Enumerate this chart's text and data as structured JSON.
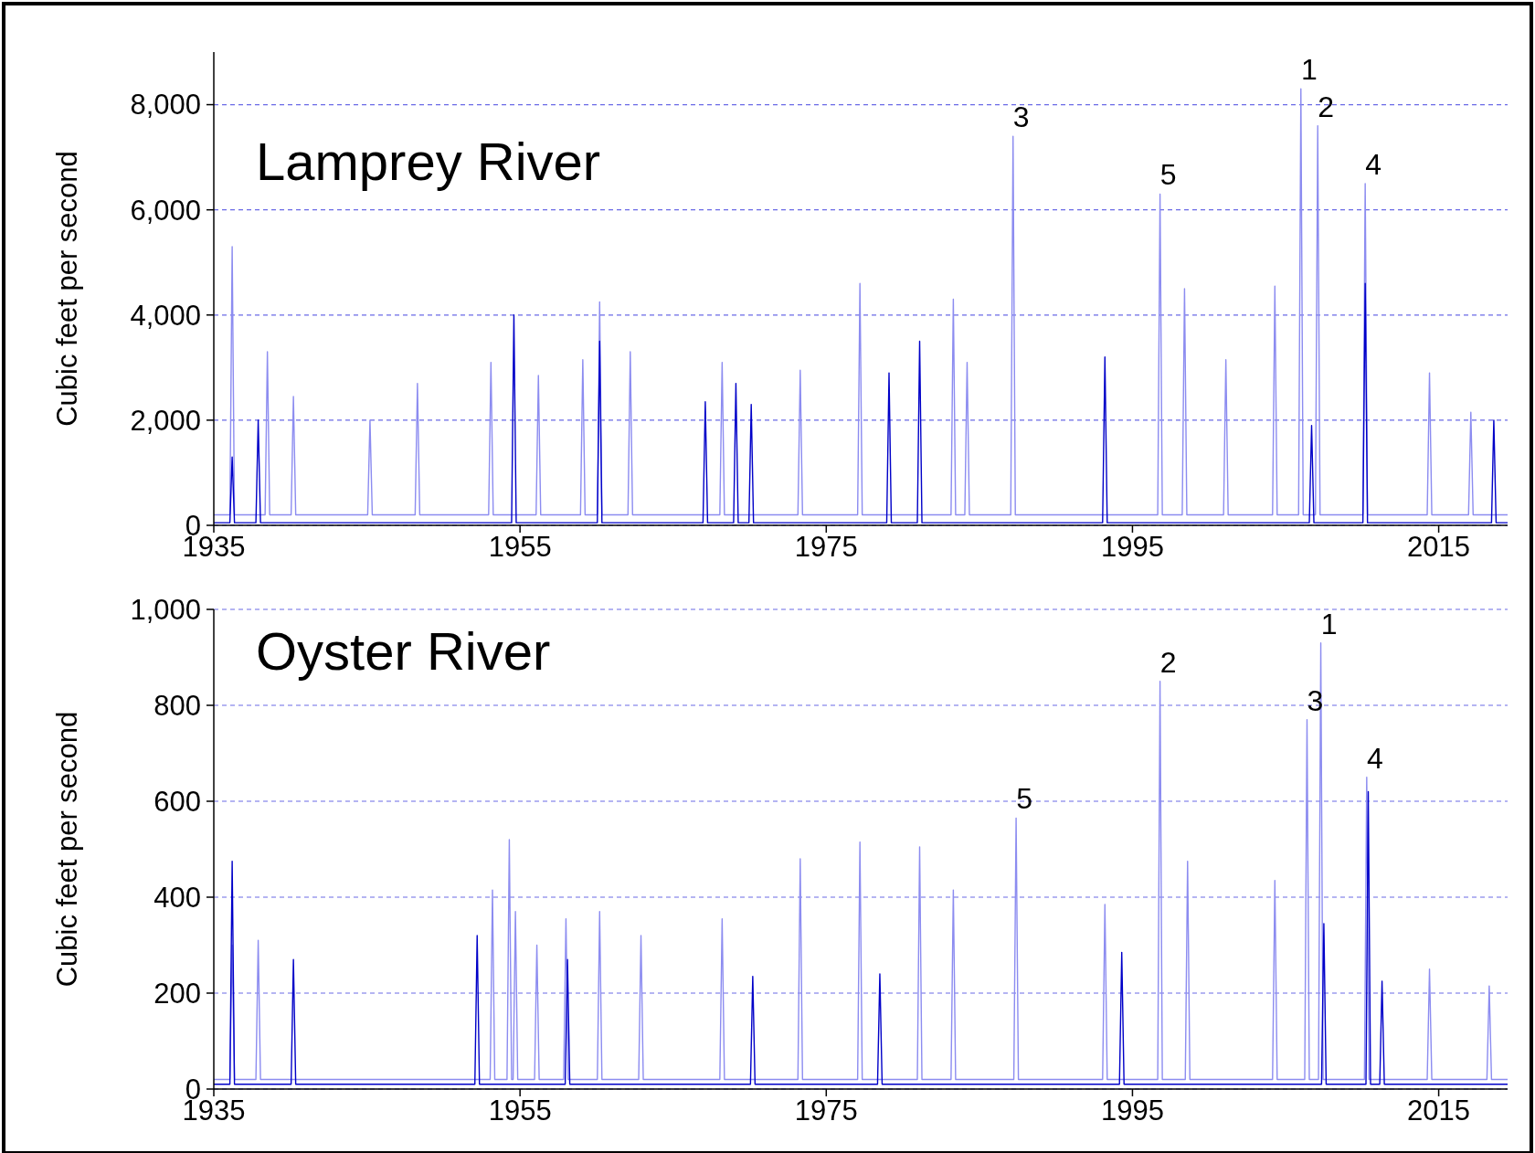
{
  "chart_data": [
    {
      "type": "line",
      "title": "Lamprey River",
      "ylabel": "Cubic feet per second",
      "xlim": [
        1935,
        2019.5
      ],
      "xticks": [
        1935,
        1955,
        1975,
        1995,
        2015
      ],
      "ylim": [
        0,
        9000
      ],
      "yticks": [
        0,
        {
          "value": 2000,
          "label": "2,000"
        },
        {
          "value": 4000,
          "label": "4,000"
        },
        {
          "value": 6000,
          "label": "6,000"
        },
        {
          "value": 8000,
          "label": "8,000"
        }
      ],
      "grid": "y",
      "line_style": "solid",
      "series": [
        {
          "color": "#8c8cf0",
          "x": [
            1935,
            1936.05,
            1936.2,
            1936.35,
            1938.35,
            1938.5,
            1938.65,
            1940.05,
            1940.2,
            1940.35,
            1945.05,
            1945.2,
            1945.35,
            1948.15,
            1948.3,
            1948.45,
            1952.95,
            1953.1,
            1953.25,
            1956.05,
            1956.2,
            1956.35,
            1958.95,
            1959.1,
            1959.25,
            1960.05,
            1960.2,
            1960.35,
            1962.05,
            1962.2,
            1962.35,
            1968.05,
            1968.2,
            1968.35,
            1973.15,
            1973.3,
            1973.45,
            1977.05,
            1977.2,
            1977.35,
            1983.15,
            1983.3,
            1983.45,
            1984.05,
            1984.2,
            1984.35,
            1987.05,
            1987.2,
            1987.35,
            1996.65,
            1996.8,
            1996.95,
            1998.25,
            1998.4,
            1998.55,
            2000.95,
            2001.1,
            2001.25,
            2004.15,
            2004.3,
            2004.45,
            2005.85,
            2006,
            2006.15,
            2006.95,
            2007.1,
            2007.25,
            2010.05,
            2010.2,
            2010.35,
            2014.25,
            2014.4,
            2014.55,
            2016.95,
            2017.1,
            2017.25,
            2019.5
          ],
          "values": [
            200,
            200,
            5300,
            200,
            200,
            3300,
            200,
            200,
            2450,
            200,
            200,
            2000,
            200,
            200,
            2700,
            200,
            200,
            3100,
            200,
            200,
            2850,
            200,
            200,
            3150,
            200,
            200,
            4250,
            200,
            200,
            3300,
            200,
            200,
            3100,
            200,
            200,
            2950,
            200,
            200,
            4600,
            200,
            200,
            4300,
            200,
            200,
            3100,
            200,
            200,
            7400,
            200,
            200,
            6300,
            200,
            200,
            4500,
            200,
            200,
            3150,
            200,
            200,
            4550,
            200,
            200,
            8300,
            200,
            200,
            7600,
            200,
            200,
            6500,
            200,
            200,
            2900,
            200,
            200,
            2150,
            200,
            200
          ]
        },
        {
          "color": "#0000c8",
          "x": [
            1935,
            1936.05,
            1936.2,
            1936.35,
            1937.75,
            1937.9,
            1938.05,
            1954.45,
            1954.6,
            1954.75,
            1960.05,
            1960.2,
            1960.35,
            1966.95,
            1967.1,
            1967.25,
            1968.95,
            1969.1,
            1969.25,
            1969.95,
            1970.1,
            1970.25,
            1978.95,
            1979.1,
            1979.25,
            1980.95,
            1981.1,
            1981.25,
            1993.05,
            1993.2,
            1993.35,
            2006.55,
            2006.7,
            2006.85,
            2010.05,
            2010.2,
            2010.35,
            2018.45,
            2018.6,
            2018.75,
            2019.5
          ],
          "values": [
            50,
            50,
            1300,
            50,
            50,
            2000,
            50,
            50,
            4000,
            50,
            50,
            3500,
            50,
            50,
            2350,
            50,
            50,
            2700,
            50,
            50,
            2300,
            50,
            50,
            2900,
            50,
            50,
            3500,
            50,
            50,
            3200,
            50,
            50,
            1900,
            50,
            50,
            4600,
            50,
            50,
            2000,
            50,
            50
          ]
        }
      ],
      "annotations": [
        {
          "text": "1",
          "x": 2006,
          "y": 8300
        },
        {
          "text": "2",
          "x": 2007.1,
          "y": 7600
        },
        {
          "text": "3",
          "x": 1987.2,
          "y": 7400
        },
        {
          "text": "4",
          "x": 2010.2,
          "y": 6500
        },
        {
          "text": "5",
          "x": 1996.8,
          "y": 6300
        }
      ]
    },
    {
      "type": "line",
      "title": "Oyster River",
      "ylabel": "Cubic feet per second",
      "xlim": [
        1935,
        2019.5
      ],
      "xticks": [
        1935,
        1955,
        1975,
        1995,
        2015
      ],
      "ylim": [
        0,
        1000
      ],
      "yticks": [
        0,
        200,
        400,
        600,
        800,
        {
          "value": 1000,
          "label": "1,000"
        }
      ],
      "grid": "y",
      "line_style": "solid",
      "series": [
        {
          "color": "#8c8cf0",
          "x": [
            1935,
            1936.05,
            1936.2,
            1936.35,
            1937.75,
            1937.9,
            1938.05,
            1953.05,
            1953.2,
            1953.35,
            1954.15,
            1954.3,
            1954.45,
            1954.55,
            1954.7,
            1954.85,
            1955.95,
            1956.1,
            1956.25,
            1957.85,
            1958,
            1958.15,
            1960.05,
            1960.2,
            1960.35,
            1962.75,
            1962.9,
            1963.05,
            1968.05,
            1968.2,
            1968.35,
            1973.15,
            1973.3,
            1973.45,
            1977.05,
            1977.2,
            1977.35,
            1980.95,
            1981.1,
            1981.25,
            1983.15,
            1983.3,
            1983.45,
            1987.25,
            1987.4,
            1987.55,
            1993.05,
            1993.2,
            1993.35,
            1996.65,
            1996.8,
            1996.95,
            1998.45,
            1998.6,
            1998.75,
            2004.15,
            2004.3,
            2004.45,
            2006.25,
            2006.4,
            2006.55,
            2007.15,
            2007.3,
            2007.45,
            2010.15,
            2010.3,
            2010.45,
            2014.25,
            2014.4,
            2014.55,
            2018.15,
            2018.3,
            2018.45,
            2019.5
          ],
          "values": [
            20,
            20,
            300,
            20,
            20,
            310,
            20,
            20,
            415,
            20,
            20,
            520,
            20,
            20,
            370,
            20,
            20,
            300,
            20,
            20,
            355,
            20,
            20,
            370,
            20,
            20,
            320,
            20,
            20,
            355,
            20,
            20,
            480,
            20,
            20,
            515,
            20,
            20,
            505,
            20,
            20,
            415,
            20,
            20,
            565,
            20,
            20,
            385,
            20,
            20,
            850,
            20,
            20,
            475,
            20,
            20,
            435,
            20,
            20,
            770,
            20,
            20,
            930,
            20,
            20,
            650,
            20,
            20,
            250,
            20,
            20,
            215,
            20,
            20
          ]
        },
        {
          "color": "#0000c8",
          "x": [
            1935,
            1936.05,
            1936.2,
            1936.35,
            1940.05,
            1940.2,
            1940.35,
            1952.05,
            1952.2,
            1952.35,
            1957.95,
            1958.1,
            1958.25,
            1970.05,
            1970.2,
            1970.35,
            1978.35,
            1978.5,
            1978.65,
            1994.15,
            1994.3,
            1994.45,
            2007.35,
            2007.5,
            2007.65,
            2010.25,
            2010.4,
            2010.55,
            2011.15,
            2011.3,
            2011.45,
            2019.5
          ],
          "values": [
            10,
            10,
            475,
            10,
            10,
            270,
            10,
            10,
            320,
            10,
            10,
            270,
            10,
            10,
            235,
            10,
            10,
            240,
            10,
            10,
            285,
            10,
            10,
            345,
            10,
            10,
            620,
            10,
            10,
            225,
            10,
            10
          ]
        }
      ],
      "annotations": [
        {
          "text": "1",
          "x": 2007.3,
          "y": 930
        },
        {
          "text": "2",
          "x": 1996.8,
          "y": 850
        },
        {
          "text": "3",
          "x": 2006.4,
          "y": 770
        },
        {
          "text": "4",
          "x": 2010.3,
          "y": 650
        },
        {
          "text": "5",
          "x": 1987.4,
          "y": 565
        }
      ]
    }
  ]
}
